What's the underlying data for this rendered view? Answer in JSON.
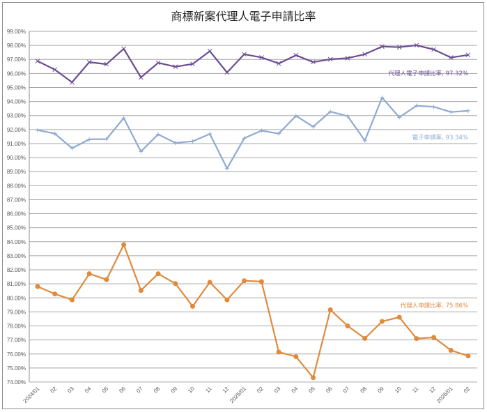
{
  "chart_data": {
    "type": "line",
    "title": "商標新案代理人電子申請比率",
    "xlabel": "",
    "ylabel": "",
    "ylim": [
      74,
      99
    ],
    "ytick_step": 1,
    "ytick_format": "0.00%",
    "grid": true,
    "legend": "none (data labels on last point)",
    "categories": [
      "2024/01",
      "02",
      "03",
      "04",
      "05",
      "06",
      "07",
      "08",
      "09",
      "10",
      "11",
      "12",
      "2025/01",
      "02",
      "03",
      "04",
      "05",
      "06",
      "07",
      "08",
      "09",
      "10",
      "11",
      "12",
      "2026/01",
      "02"
    ],
    "series": [
      {
        "name": "代理人電子申請比率",
        "color": "#6a4c93",
        "marker": "x",
        "label": "代理人電子申請比率, 97.32%",
        "values": [
          96.88,
          96.27,
          95.37,
          96.81,
          96.66,
          97.76,
          95.72,
          96.76,
          96.48,
          96.68,
          97.59,
          96.07,
          97.37,
          97.14,
          96.71,
          97.3,
          96.81,
          97.01,
          97.09,
          97.37,
          97.92,
          97.87,
          98.01,
          97.71,
          97.13,
          97.32
        ]
      },
      {
        "name": "電子申請率",
        "color": "#8eaad3",
        "marker": "+",
        "label": "電子申請率, 93.34%",
        "values": [
          91.96,
          91.71,
          90.67,
          91.3,
          91.32,
          92.82,
          90.43,
          91.66,
          91.05,
          91.16,
          91.69,
          89.23,
          91.38,
          91.92,
          91.71,
          92.98,
          92.2,
          93.28,
          92.95,
          91.21,
          94.28,
          92.87,
          93.7,
          93.62,
          93.25,
          93.34
        ]
      },
      {
        "name": "代理人申請比率",
        "color": "#e08a3c",
        "marker": "circle",
        "label": "代理人申請比率, 75.86%",
        "values": [
          80.81,
          80.28,
          79.86,
          81.72,
          81.3,
          83.79,
          80.53,
          81.72,
          81.02,
          79.4,
          81.11,
          79.86,
          81.22,
          81.16,
          76.14,
          75.81,
          74.31,
          79.15,
          78.0,
          77.11,
          78.32,
          78.62,
          77.1,
          77.18,
          76.26,
          75.86
        ]
      }
    ]
  }
}
